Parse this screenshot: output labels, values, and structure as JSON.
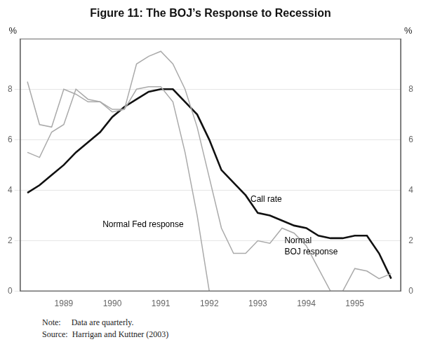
{
  "chart_data": {
    "type": "line",
    "title": "Figure 11: The BOJ’s Response to Recession",
    "notes": [
      "Note:     Data are quarterly.",
      "Source:  Harrigan and Kuttner (2003)"
    ],
    "ylabel": "%",
    "y2label": "%",
    "xlim": [
      1988.1,
      1995.95
    ],
    "xticks": [
      1989,
      1990,
      1991,
      1992,
      1993,
      1994,
      1995
    ],
    "ylim": [
      0,
      10
    ],
    "yticks": [
      0,
      2,
      4,
      6,
      8
    ],
    "y2lim": [
      0,
      10
    ],
    "y2ticks": [
      0,
      2,
      4,
      6,
      8
    ],
    "grid": "y",
    "series": [
      {
        "color": "#aaaaaa",
        "x": [
          1988.25,
          1988.5,
          1988.75,
          1989.0,
          1989.25,
          1989.5,
          1989.75,
          1990.0,
          1990.25,
          1990.5,
          1990.75,
          1991.0,
          1991.25,
          1991.5,
          1991.75,
          1992.0,
          1992.25,
          1992.5,
          1992.75,
          1993.0,
          1993.25,
          1993.5,
          1993.75,
          1994.0,
          1994.25,
          1994.5,
          1994.75,
          1995.0,
          1995.25,
          1995.5,
          1995.75
        ],
        "values": [
          8.3,
          6.6,
          6.5,
          8.0,
          7.8,
          7.5,
          7.5,
          7.1,
          7.2,
          9.0,
          9.3,
          9.5,
          9.0,
          8.0,
          6.5,
          4.5,
          2.5,
          1.5,
          1.5,
          2.0,
          1.9,
          2.5,
          2.3,
          1.8,
          0.9,
          0.0,
          0.0,
          0.9,
          0.8,
          0.5,
          0.7
        ]
      },
      {
        "color": "#aaaaaa",
        "x": [
          1988.25,
          1988.5,
          1988.75,
          1989.0,
          1989.25,
          1989.5,
          1989.75,
          1990.0,
          1990.25,
          1990.5,
          1990.75,
          1991.0,
          1991.25,
          1991.5,
          1991.75,
          1992.0
        ],
        "values": [
          5.5,
          5.3,
          6.3,
          6.6,
          8.0,
          7.6,
          7.5,
          7.2,
          7.2,
          8.0,
          8.1,
          8.1,
          7.5,
          5.5,
          3.0,
          0.0
        ]
      },
      {
        "color": "#111111",
        "x": [
          1988.25,
          1988.5,
          1988.75,
          1989.0,
          1989.25,
          1989.5,
          1989.75,
          1990.0,
          1990.25,
          1990.5,
          1990.75,
          1991.0,
          1991.25,
          1991.5,
          1991.75,
          1992.0,
          1992.25,
          1992.5,
          1992.75,
          1993.0,
          1993.25,
          1993.5,
          1993.75,
          1994.0,
          1994.25,
          1994.5,
          1994.75,
          1995.0,
          1995.25,
          1995.5,
          1995.75
        ],
        "values": [
          3.9,
          4.2,
          4.6,
          5.0,
          5.5,
          5.9,
          6.3,
          6.9,
          7.3,
          7.6,
          7.9,
          8.0,
          8.0,
          7.5,
          7.0,
          6.0,
          4.8,
          4.3,
          3.8,
          3.1,
          3.0,
          2.8,
          2.6,
          2.5,
          2.2,
          2.1,
          2.1,
          2.2,
          2.2,
          1.5,
          0.5
        ]
      }
    ],
    "annotations": [
      {
        "text": "Call rate",
        "x": 1992.85,
        "y": 3.55
      },
      {
        "text": "Normal Fed response",
        "x": 1989.8,
        "y": 2.55
      },
      {
        "text": "Normal\nBOJ response",
        "x": 1993.55,
        "y": 1.45
      }
    ]
  }
}
